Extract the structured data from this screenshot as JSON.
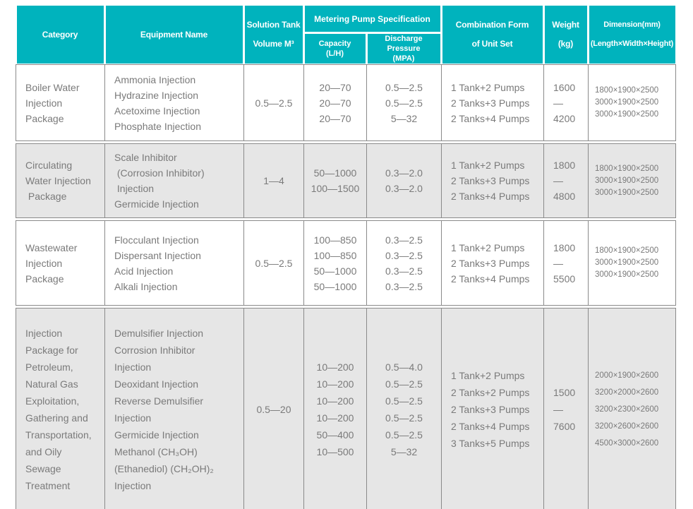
{
  "colors": {
    "header_teal": "#00b3bd",
    "header_text": "#ffffff",
    "row_alt_bg": "#e6e6e6",
    "cell_border": "#8a8a8a",
    "body_text": "#7a7a7a"
  },
  "header": {
    "category": "Category",
    "equipment": "Equipment Name",
    "tank": [
      "Solution Tank",
      "Volume M³"
    ],
    "pump_group": "Metering Pump Specification",
    "capacity": [
      "Capacity",
      "(L/H)"
    ],
    "discharge": [
      "Discharge Pressure",
      "(MPA)"
    ],
    "combination": [
      "Combination Form",
      "of Unit Set"
    ],
    "weight": [
      "Weight",
      "(kg)"
    ],
    "dimension": [
      "Dimension(mm)",
      "(Length×Width×Height)"
    ]
  },
  "rows": [
    {
      "category": [
        "Boiler Water",
        "Injection",
        "Package"
      ],
      "equipment": [
        "Ammonia Injection",
        "Hydrazine Injection",
        "Acetoxime Injection",
        "Phosphate Injection"
      ],
      "tank": "0.5—2.5",
      "capacity": [
        "20—70",
        "20—70",
        "20—70"
      ],
      "discharge": [
        "0.5—2.5",
        "0.5—2.5",
        "5—32"
      ],
      "combination": [
        "1 Tank+2 Pumps",
        "2 Tanks+3 Pumps",
        "2 Tanks+4 Pumps"
      ],
      "weight": [
        "1600—",
        "4200"
      ],
      "dimension": [
        "1800×1900×2500",
        "3000×1900×2500",
        "3000×1900×2500"
      ]
    },
    {
      "category": [
        "Circulating",
        "Water Injection",
        " Package"
      ],
      "equipment": [
        "Scale Inhibitor",
        " (Corrosion Inhibitor)",
        " Injection",
        "Germicide Injection"
      ],
      "tank": "1—4",
      "capacity": [
        "50—1000",
        "100—1500"
      ],
      "discharge": [
        "0.3—2.0",
        "0.3—2.0"
      ],
      "combination": [
        "1 Tank+2 Pumps",
        "2 Tanks+3 Pumps",
        "2 Tanks+4 Pumps"
      ],
      "weight": [
        "1800—",
        "4800"
      ],
      "dimension": [
        "1800×1900×2500",
        "3000×1900×2500",
        "3000×1900×2500"
      ]
    },
    {
      "category": [
        "Wastewater",
        "Injection",
        "Package"
      ],
      "equipment": [
        "Flocculant Injection",
        "Dispersant Injection",
        "Acid Injection",
        "Alkali Injection"
      ],
      "tank": "0.5—2.5",
      "capacity": [
        "100—850",
        "100—850",
        "50—1000",
        "50—1000"
      ],
      "discharge": [
        "0.3—2.5",
        "0.3—2.5",
        "0.3—2.5",
        "0.3—2.5"
      ],
      "combination": [
        "1 Tank+2 Pumps",
        "2 Tanks+3 Pumps",
        "2 Tanks+4 Pumps"
      ],
      "weight": [
        "1800—",
        "5500"
      ],
      "dimension": [
        "1800×1900×2500",
        "3000×1900×2500",
        "3000×1900×2500"
      ]
    },
    {
      "category": [
        "Injection",
        "Package for",
        "Petroleum,",
        "Natural Gas",
        "Exploitation,",
        "Gathering and",
        "Transportation,",
        "and Oily",
        "Sewage",
        "Treatment"
      ],
      "equipment": [
        "Demulsifier Injection",
        "Corrosion Inhibitor",
        "Injection",
        "Deoxidant Injection",
        "Reverse Demulsifier",
        "Injection",
        "Germicide Injection",
        "Methanol (CH₃OH)",
        "(Ethanediol) (CH₂OH)₂",
        "Injection"
      ],
      "tank": "0.5—20",
      "capacity": [
        "10—200",
        "10—200",
        "10—200",
        "10—200",
        "50—400",
        "10—500"
      ],
      "discharge": [
        "0.5—4.0",
        "0.5—2.5",
        "0.5—2.5",
        "0.5—2.5",
        "0.5—2.5",
        "5—32"
      ],
      "combination": [
        "1 Tank+2 Pumps",
        "2 Tanks+2 Pumps",
        "2 Tanks+3 Pumps",
        "2 Tanks+4 Pumps",
        "3 Tanks+5 Pumps"
      ],
      "weight": [
        "1500—",
        "7600"
      ],
      "dimension": [
        "2000×1900×2600",
        "3200×2000×2600",
        "3200×2300×2600",
        "3200×2600×2600",
        "4500×3000×2600"
      ]
    }
  ]
}
